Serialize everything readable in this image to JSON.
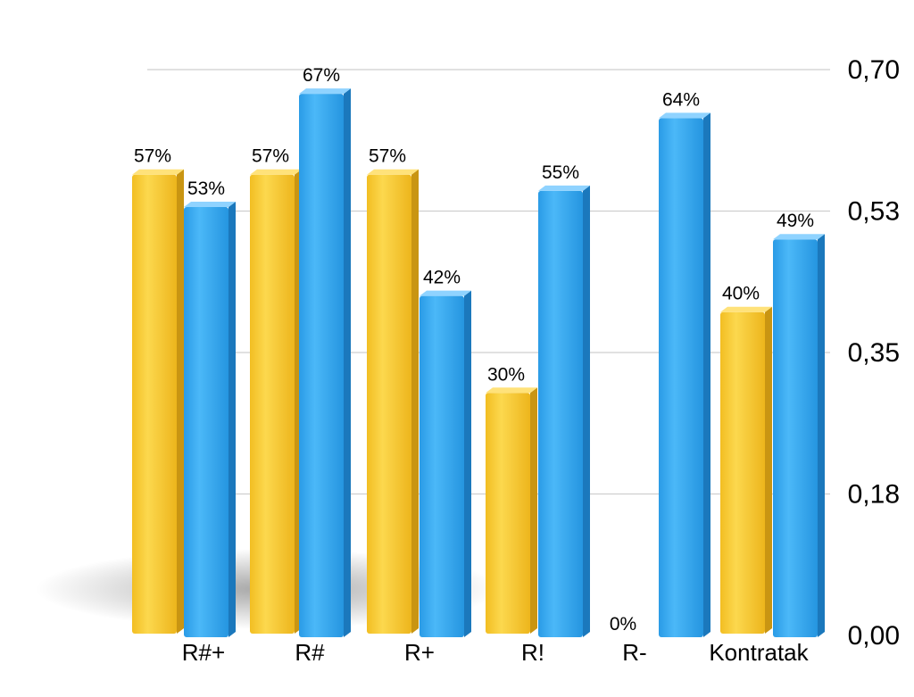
{
  "chart_data": {
    "type": "bar",
    "categories": [
      "R#+",
      "R#",
      "R+",
      "R!",
      "R-",
      "Kontratak"
    ],
    "series": [
      {
        "color": "#F6C830",
        "values": [
          0.57,
          0.57,
          0.57,
          0.3,
          0.0,
          0.4
        ],
        "labels": [
          "57%",
          "57%",
          "57%",
          "30%",
          "0%",
          "40%"
        ]
      },
      {
        "color": "#2FA8F0",
        "values": [
          0.53,
          0.67,
          0.42,
          0.55,
          0.64,
          0.49
        ],
        "labels": [
          "53%",
          "67%",
          "42%",
          "55%",
          "64%",
          "49%"
        ]
      }
    ],
    "y_ticks": [
      "0,00",
      "0,18",
      "0,35",
      "0,53",
      "0,70"
    ],
    "y_tick_values": [
      0.0,
      0.175,
      0.35,
      0.525,
      0.7
    ],
    "ylim": [
      0,
      0.7
    ],
    "y_axis_position": "right",
    "grid": true,
    "legend": "none"
  }
}
